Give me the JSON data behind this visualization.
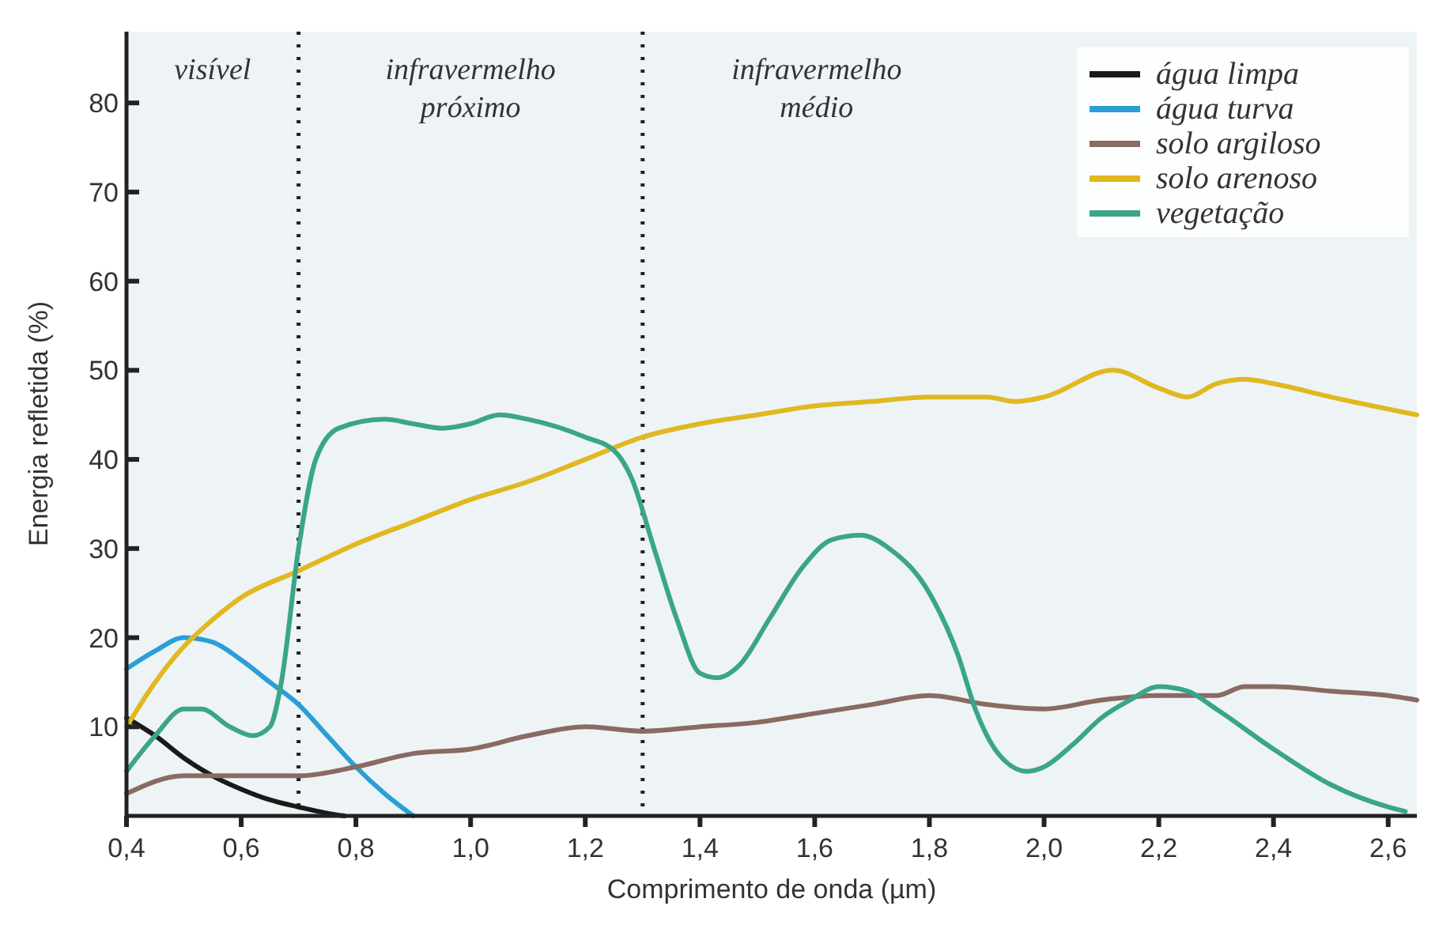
{
  "chart_data": {
    "type": "line",
    "xlabel": "Comprimento de onda (µm)",
    "ylabel": "Energia refletida (%)",
    "xlim": [
      0.4,
      2.65
    ],
    "ylim": [
      0,
      88
    ],
    "xticks": [
      {
        "value": 0.4,
        "label": "0,4"
      },
      {
        "value": 0.6,
        "label": "0,6"
      },
      {
        "value": 0.8,
        "label": "0,8"
      },
      {
        "value": 1.0,
        "label": "1,0"
      },
      {
        "value": 1.2,
        "label": "1,2"
      },
      {
        "value": 1.4,
        "label": "1,4"
      },
      {
        "value": 1.6,
        "label": "1,6"
      },
      {
        "value": 1.8,
        "label": "1,8"
      },
      {
        "value": 2.0,
        "label": "2,0"
      },
      {
        "value": 2.2,
        "label": "2,2"
      },
      {
        "value": 2.4,
        "label": "2,4"
      },
      {
        "value": 2.6,
        "label": "2,6"
      }
    ],
    "yticks": [
      10,
      20,
      30,
      40,
      50,
      60,
      70,
      80
    ],
    "grid": false,
    "legend": "top right",
    "line_style": "solid",
    "ref_lines": [
      {
        "axis": "x",
        "value": 0.7,
        "line_style": "dotted",
        "color": "#222222"
      },
      {
        "axis": "x",
        "value": 1.3,
        "line_style": "dotted",
        "color": "#222222"
      }
    ],
    "annotations": [
      "visível",
      "infravermelho\npróximo",
      "infravermelho\nmédio"
    ],
    "series": [
      {
        "name": "água limpa",
        "color": "#1a1a1a",
        "x": [
          0.4,
          0.45,
          0.5,
          0.55,
          0.6,
          0.65,
          0.7,
          0.75,
          0.78
        ],
        "values": [
          11,
          9,
          6.5,
          4.5,
          3,
          1.8,
          1,
          0.3,
          0
        ]
      },
      {
        "name": "água turva",
        "color": "#2a9fd6",
        "x": [
          0.4,
          0.45,
          0.5,
          0.55,
          0.6,
          0.65,
          0.7,
          0.75,
          0.8,
          0.85,
          0.9
        ],
        "values": [
          16.5,
          18.5,
          20,
          19.5,
          17.5,
          15,
          12.5,
          9,
          5.5,
          2.5,
          0
        ]
      },
      {
        "name": "solo argiloso",
        "color": "#8a6a62",
        "x": [
          0.4,
          0.5,
          0.6,
          0.7,
          0.8,
          0.9,
          1.0,
          1.1,
          1.2,
          1.3,
          1.4,
          1.5,
          1.6,
          1.7,
          1.8,
          1.9,
          2.0,
          2.1,
          2.2,
          2.3,
          2.35,
          2.4,
          2.5,
          2.6,
          2.65
        ],
        "values": [
          2.5,
          4.5,
          4.5,
          4.5,
          5.5,
          7,
          7.5,
          9,
          10,
          9.5,
          10,
          10.5,
          11.5,
          12.5,
          13.5,
          12.5,
          12,
          13,
          13.5,
          13.5,
          14.5,
          14.5,
          14,
          13.5,
          13
        ]
      },
      {
        "name": "solo arenoso",
        "color": "#e0b820",
        "x": [
          0.4,
          0.45,
          0.5,
          0.55,
          0.6,
          0.7,
          0.8,
          0.9,
          1.0,
          1.1,
          1.2,
          1.3,
          1.4,
          1.5,
          1.6,
          1.7,
          1.8,
          1.9,
          1.95,
          2.0,
          2.12,
          2.2,
          2.25,
          2.3,
          2.35,
          2.4,
          2.5,
          2.65
        ],
        "values": [
          10,
          15,
          19,
          22,
          24.5,
          27.5,
          30.5,
          33,
          35.5,
          37.5,
          40,
          42.5,
          44,
          45,
          46,
          46.5,
          47,
          47,
          46.5,
          47,
          50,
          48,
          47,
          48.5,
          49,
          48.5,
          47,
          45
        ]
      },
      {
        "name": "vegetação",
        "color": "#3aa58a",
        "x": [
          0.4,
          0.45,
          0.5,
          0.53,
          0.58,
          0.62,
          0.65,
          0.67,
          0.7,
          0.73,
          0.77,
          0.85,
          0.9,
          0.95,
          1.0,
          1.05,
          1.1,
          1.2,
          1.25,
          1.28,
          1.32,
          1.36,
          1.4,
          1.43,
          1.47,
          1.52,
          1.58,
          1.63,
          1.68,
          1.73,
          1.8,
          1.85,
          1.88,
          1.92,
          1.97,
          2.0,
          2.05,
          2.1,
          2.15,
          2.2,
          2.25,
          2.3,
          2.4,
          2.5,
          2.6,
          2.63
        ],
        "values": [
          5,
          9,
          12,
          12,
          10,
          9,
          10,
          15,
          30,
          40,
          43.5,
          44.5,
          44,
          43.5,
          44,
          45,
          44.5,
          42.5,
          41,
          38,
          30,
          22,
          16,
          15.5,
          17,
          22,
          28,
          31,
          31.5,
          30,
          25,
          18,
          12,
          7,
          5,
          5.5,
          8,
          11,
          13,
          14.5,
          14,
          12,
          7.5,
          3.5,
          1,
          0.5
        ]
      }
    ]
  }
}
